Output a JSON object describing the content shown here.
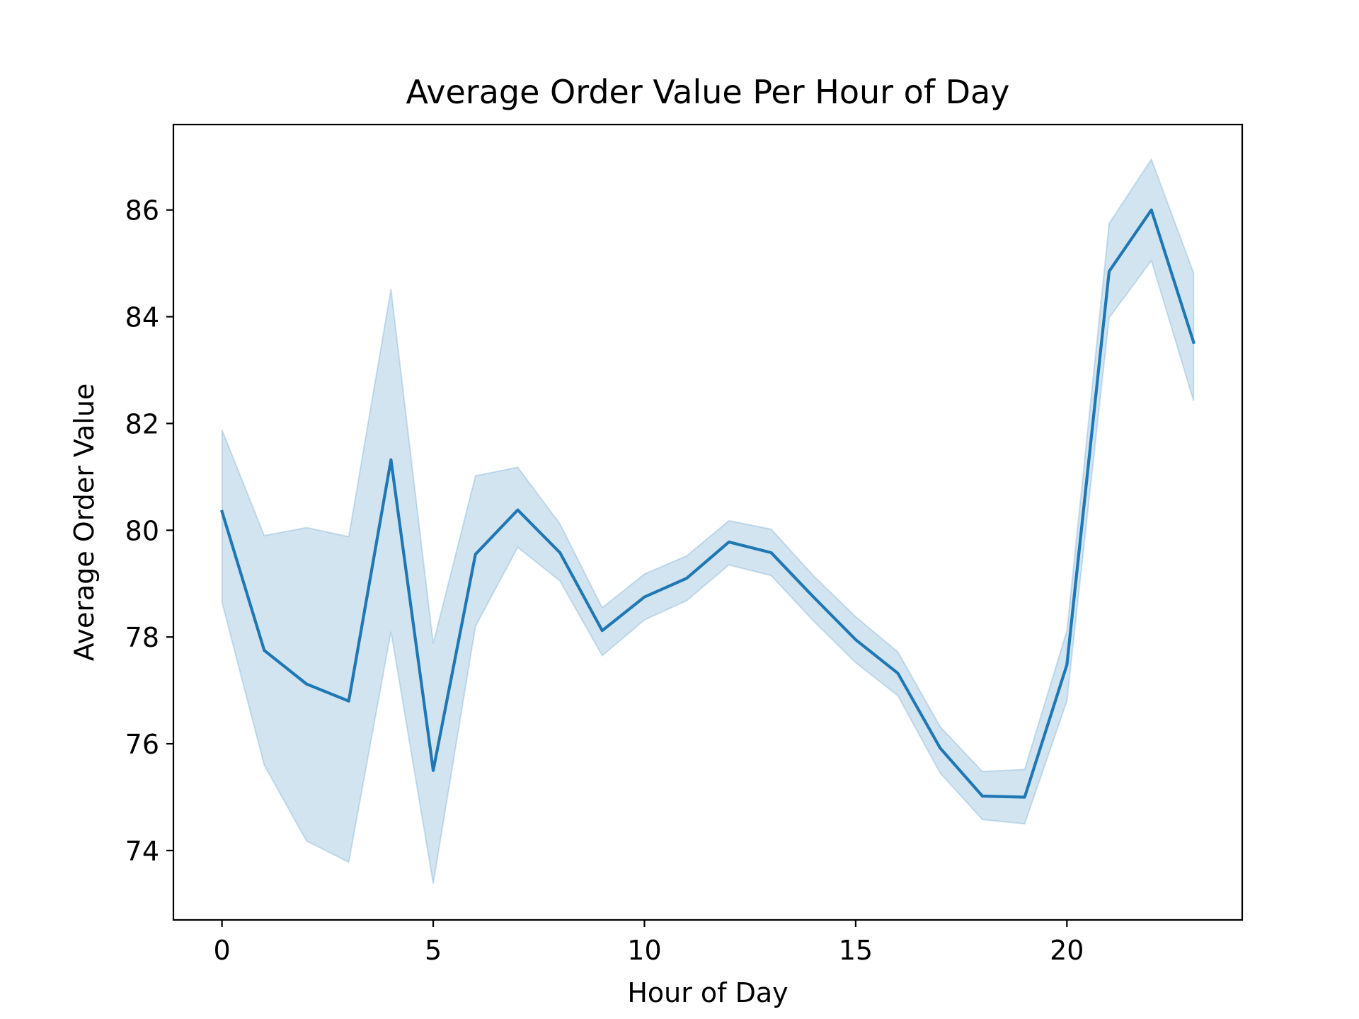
{
  "chart_data": {
    "type": "line",
    "title": "Average Order Value Per Hour of Day",
    "xlabel": "Hour of Day",
    "ylabel": "Average Order Value",
    "xlim": [
      -1.15,
      24.15
    ],
    "ylim": [
      72.7,
      87.6
    ],
    "x_ticks": [
      0,
      5,
      10,
      15,
      20
    ],
    "y_ticks": [
      74,
      76,
      78,
      80,
      82,
      84,
      86
    ],
    "grid": false,
    "legend": "none",
    "line_color": "#1f77b4",
    "band_color": "#1f77b4",
    "series": [
      {
        "x": [
          0,
          1,
          2,
          3,
          4,
          5,
          6,
          7,
          8,
          9,
          10,
          11,
          12,
          13,
          14,
          15,
          16,
          17,
          18,
          19,
          20,
          21,
          22,
          23
        ],
        "values": [
          80.35,
          77.75,
          77.12,
          76.8,
          81.32,
          75.5,
          79.55,
          80.38,
          79.58,
          78.12,
          78.75,
          79.1,
          79.78,
          79.58,
          78.75,
          77.95,
          77.32,
          75.92,
          75.02,
          75.0,
          77.48,
          84.85,
          86.0,
          83.52
        ],
        "ci_lower": [
          78.65,
          75.6,
          74.18,
          73.78,
          78.1,
          73.38,
          78.2,
          79.68,
          79.05,
          77.65,
          78.32,
          78.68,
          79.35,
          79.15,
          78.3,
          77.52,
          76.9,
          75.45,
          74.58,
          74.5,
          76.8,
          83.98,
          85.05,
          82.42
        ],
        "ci_upper": [
          81.88,
          79.9,
          80.05,
          79.88,
          84.52,
          77.88,
          81.02,
          81.18,
          80.12,
          78.55,
          79.18,
          79.52,
          80.18,
          80.02,
          79.15,
          78.38,
          77.72,
          76.32,
          75.48,
          75.52,
          78.12,
          85.75,
          86.95,
          84.82
        ]
      }
    ]
  }
}
